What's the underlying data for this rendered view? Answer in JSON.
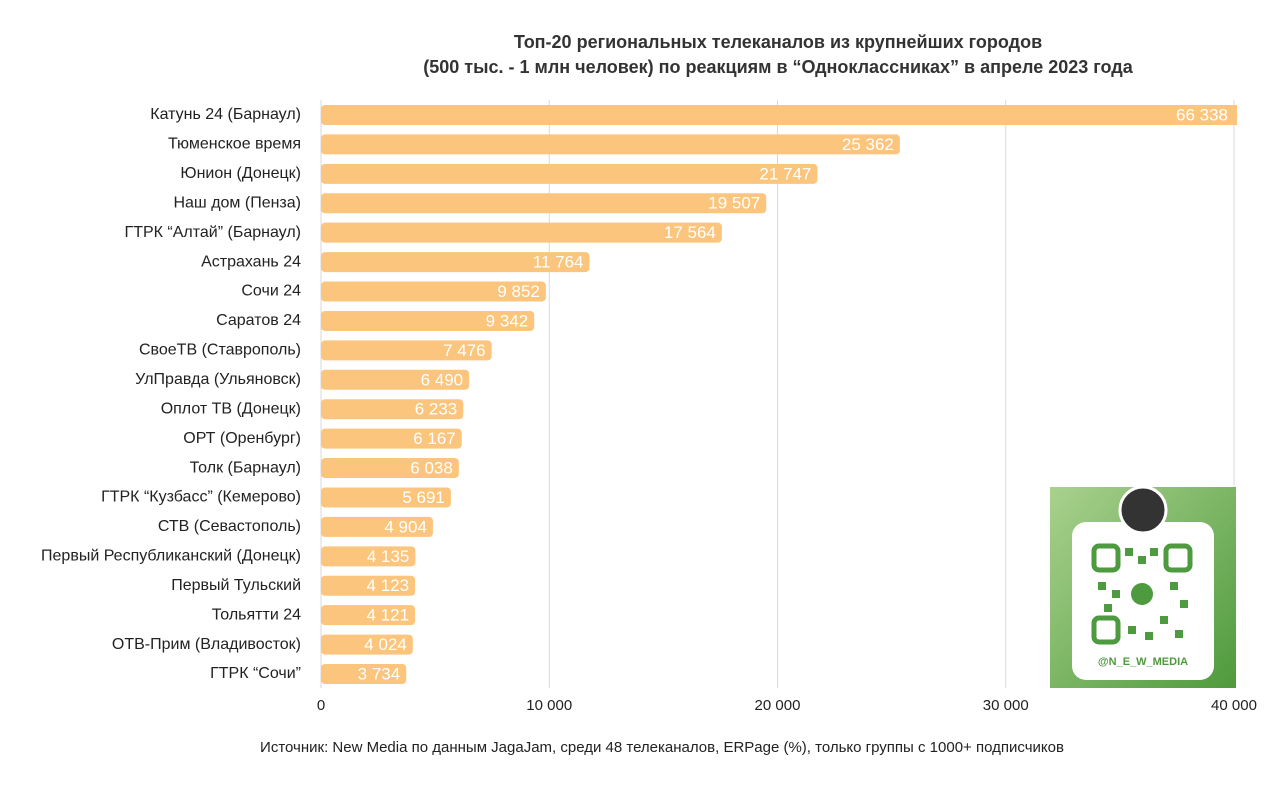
{
  "chart_data": {
    "type": "bar",
    "orientation": "horizontal",
    "title": [
      "Топ-20 региональных телеканалов из крупнейших городов",
      "(500 тыс. - 1 млн человек) по реакциям в “Одноклассниках” в апреле 2023 года"
    ],
    "categories": [
      "Катунь 24 (Барнаул)",
      "Тюменское время",
      "Юнион (Донецк)",
      "Наш дом (Пенза)",
      "ГТРК “Алтай” (Барнаул)",
      "Астрахань 24",
      "Сочи 24",
      "Саратов 24",
      "СвоеТВ (Ставрополь)",
      "УлПравда (Ульяновск)",
      "Оплот ТВ (Донецк)",
      "ОРТ (Оренбург)",
      "Толк (Барнаул)",
      "ГТРК “Кузбасс” (Кемерово)",
      "СТВ (Севастополь)",
      "Первый Республиканский (Донецк)",
      "Первый Тульский",
      "Тольятти 24",
      "ОТВ-Прим (Владивосток)",
      "ГТРК “Сочи”"
    ],
    "values": [
      66338,
      25362,
      21747,
      19507,
      17564,
      11764,
      9852,
      9342,
      7476,
      6490,
      6233,
      6167,
      6038,
      5691,
      4904,
      4135,
      4123,
      4121,
      4024,
      3734
    ],
    "value_labels": [
      "66 338",
      "25 362",
      "21 747",
      "19 507",
      "17 564",
      "11 764",
      "9 852",
      "9 342",
      "7 476",
      "6 490",
      "6 233",
      "6 167",
      "6 038",
      "5 691",
      "4 904",
      "4 135",
      "4 123",
      "4 121",
      "4 024",
      "3 734"
    ],
    "color": "#fbc57d",
    "xlim": [
      0,
      40000
    ],
    "xticks": [
      0,
      {
        "value": 10000,
        "label": "10 000"
      },
      {
        "value": 20000,
        "label": "20 000"
      },
      {
        "value": 30000,
        "label": "30 000"
      },
      {
        "value": 40000,
        "label": "40 000"
      }
    ],
    "grid": true,
    "source": "Источник: New Media по данным JagaJam, среди 48 телеканалов, ERPage (%), только группы с 1000+ подписчиков",
    "annotation": "@N_E_W_MEDIA"
  }
}
